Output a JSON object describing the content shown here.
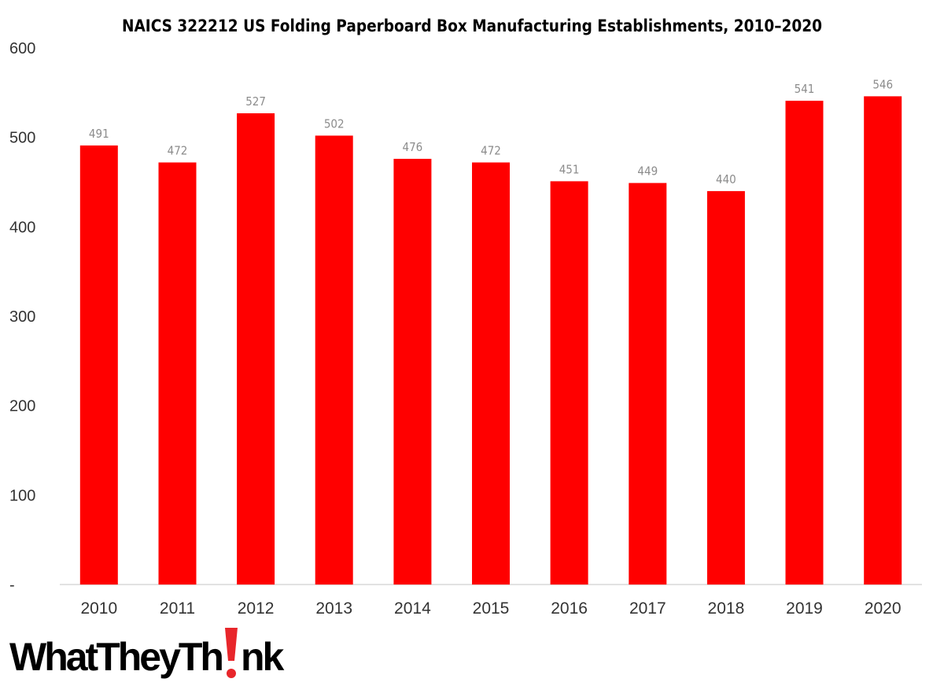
{
  "chart_data": {
    "type": "bar",
    "title": "NAICS 322212 US Folding Paperboard Box Manufacturing Establishments, 2010–2020",
    "xlabel": "",
    "ylabel": "",
    "categories": [
      "2010",
      "2011",
      "2012",
      "2013",
      "2014",
      "2015",
      "2016",
      "2017",
      "2018",
      "2019",
      "2020"
    ],
    "values": [
      491,
      472,
      527,
      502,
      476,
      472,
      451,
      449,
      440,
      541,
      546
    ],
    "data_labels": [
      "491",
      "472",
      "527",
      "502",
      "476",
      "472",
      "451",
      "449",
      "440",
      "541",
      "546"
    ],
    "ylim": [
      0,
      600
    ],
    "yticks": [
      0,
      100,
      200,
      300,
      400,
      500,
      600
    ],
    "ytick_labels": [
      "-",
      "100",
      "200",
      "300",
      "400",
      "500",
      "600"
    ],
    "grid": false,
    "legend": "none",
    "bar_color": "#ff0000",
    "label_color": "#8c8c8c"
  },
  "branding": {
    "logo_part1": "WhatTheyTh",
    "logo_part2": "nk",
    "logo_accent_color": "#e8262b"
  }
}
